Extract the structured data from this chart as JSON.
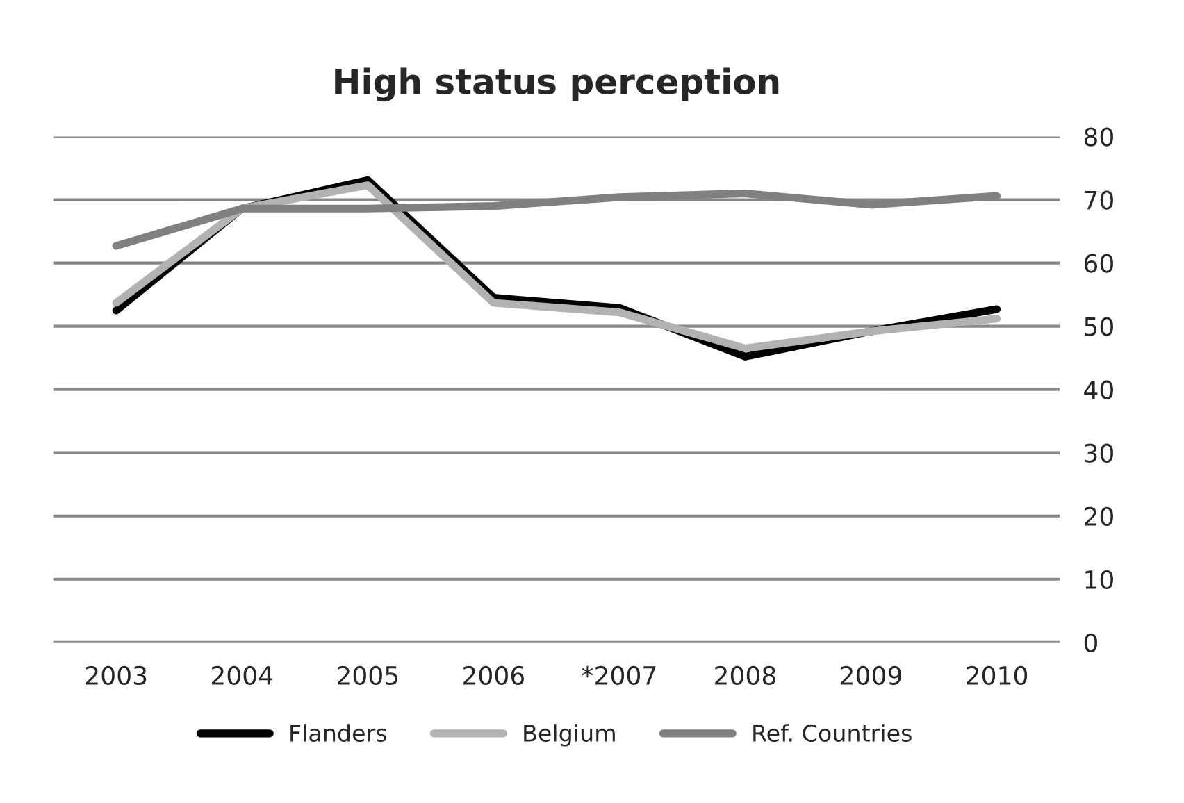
{
  "chart_data": {
    "type": "line",
    "title": "High status perception",
    "categories": [
      "2003",
      "2004",
      "2005",
      "2006",
      "*2007",
      "2008",
      "2009",
      "2010"
    ],
    "series": [
      {
        "name": "Flanders",
        "color": "#000000",
        "values": [
          52.5,
          68.6,
          73.1,
          54.5,
          52.9,
          45.2,
          49.2,
          52.7
        ]
      },
      {
        "name": "Belgium",
        "color": "#b2b2b2",
        "values": [
          53.7,
          68.6,
          72.3,
          53.7,
          52.2,
          46.5,
          49.2,
          51.2
        ]
      },
      {
        "name": "Ref. Countries",
        "color": "#808080",
        "values": [
          62.7,
          68.6,
          68.6,
          69.0,
          70.4,
          71.0,
          69.2,
          70.6
        ]
      }
    ],
    "ylim": [
      0,
      80
    ],
    "yticks": [
      0,
      10,
      20,
      30,
      40,
      50,
      60,
      70,
      80
    ],
    "grid": "y",
    "legend": "bottom",
    "marker": "none",
    "line_style": "solid"
  }
}
